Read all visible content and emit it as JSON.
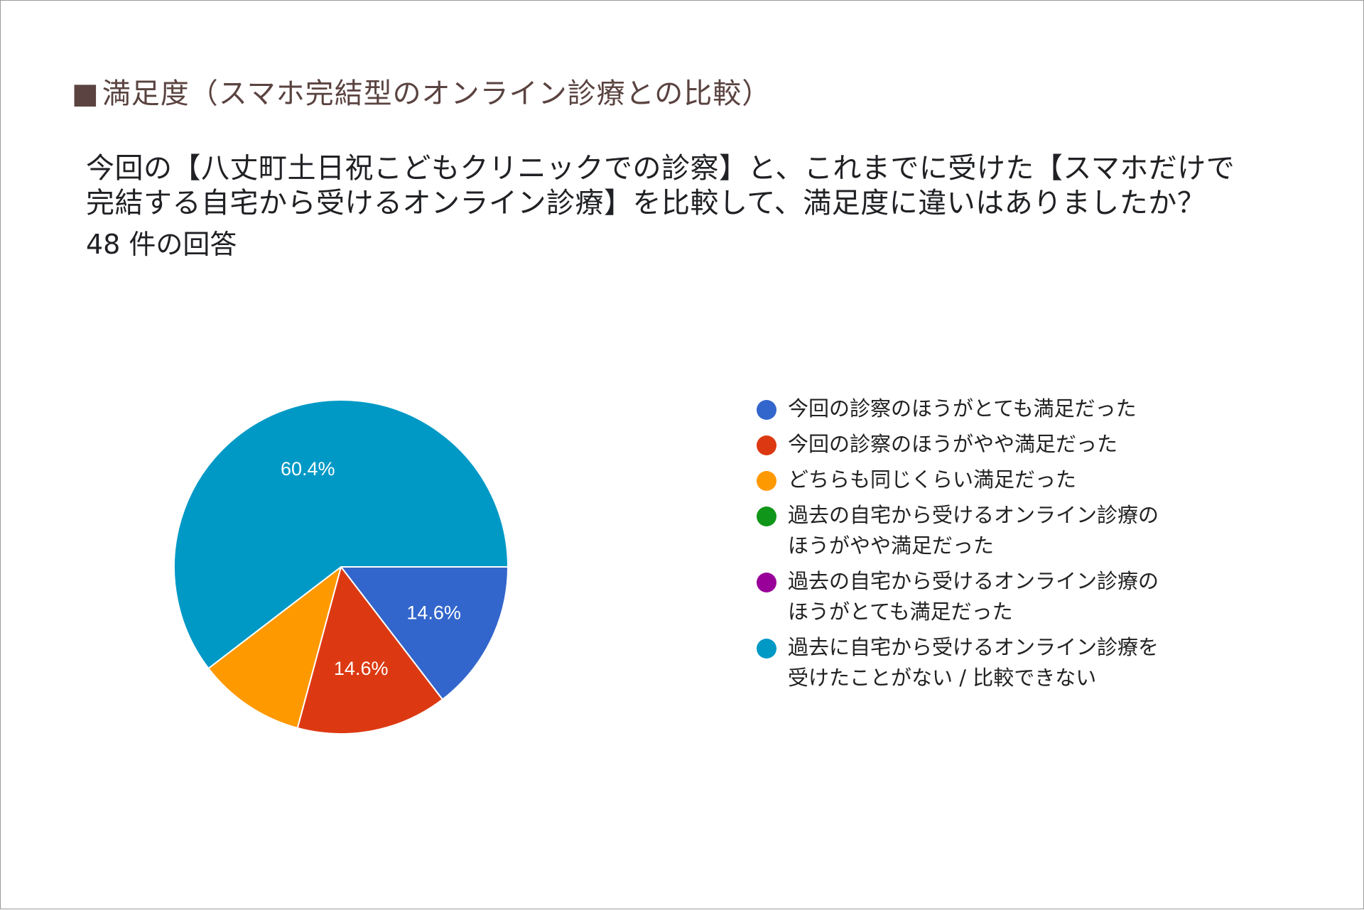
{
  "heading": {
    "marker": "■",
    "title": "満足度（スマホ完結型のオンライン診療との比較）"
  },
  "question": {
    "lines": [
      "今回の【八丈町土日祝こどもクリニックでの診察】と、これまでに受けた【スマホだけで",
      "完結する自宅から受けるオンライン診療】を比較して、満足度に違いはありましたか？"
    ],
    "response_count": "48 件の回答"
  },
  "colors": {
    "text": "#202124",
    "heading": "#5a4340",
    "frame": "#9a9a9a"
  },
  "chart_data": {
    "type": "pie",
    "title": "",
    "start": "3 o'clock, clockwise",
    "slices": [
      {
        "label": "今回の診察のほうがとても満足だった",
        "value": 14.6,
        "percent_label": "14.6%",
        "color": "#3366cc",
        "icon": "legend-dot"
      },
      {
        "label": "今回の診察のほうがやや満足だった",
        "value": 14.6,
        "percent_label": "14.6%",
        "color": "#dc3912",
        "icon": "legend-dot"
      },
      {
        "label": "どちらも同じくらい満足だった",
        "value": 10.4,
        "percent_label": "",
        "color": "#ff9900",
        "icon": "legend-dot"
      },
      {
        "label": "過去の自宅から受けるオンライン診療の\nほうがやや満足だった",
        "value": 0,
        "percent_label": "",
        "color": "#109618",
        "icon": "legend-dot"
      },
      {
        "label": "過去の自宅から受けるオンライン診療の\nほうがとても満足だった",
        "value": 0,
        "percent_label": "",
        "color": "#990099",
        "icon": "legend-dot"
      },
      {
        "label": "過去に自宅から受けるオンライン診療を\n受けたことがない / 比較できない",
        "value": 60.4,
        "percent_label": "60.4%",
        "color": "#0099c6",
        "icon": "legend-dot"
      }
    ],
    "legend": "right"
  }
}
